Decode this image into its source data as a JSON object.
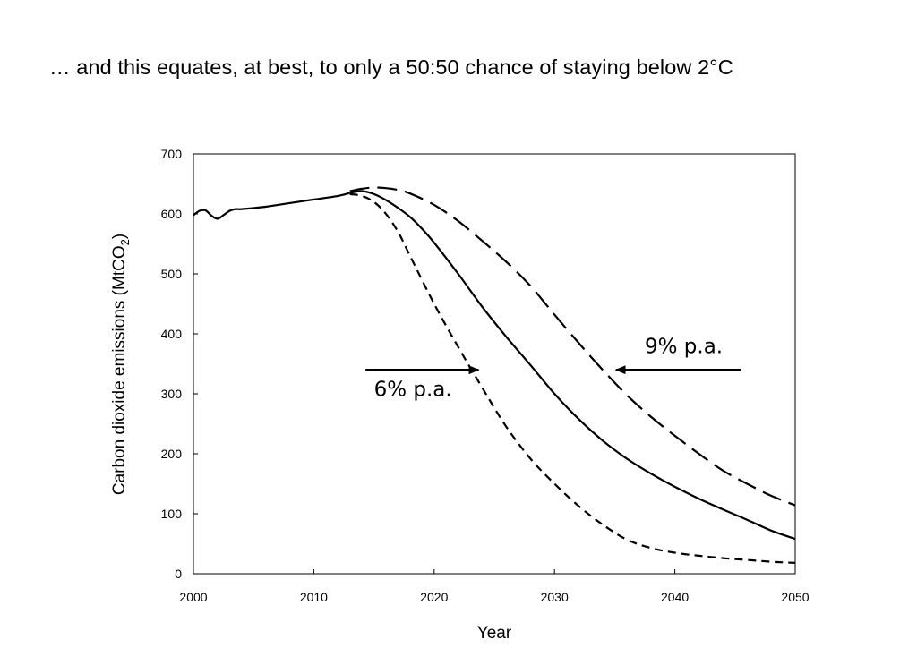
{
  "slide": {
    "title": "… and this equates, at best, to only a 50:50 chance of staying below 2°C"
  },
  "chart_data": {
    "type": "line",
    "title": "",
    "xlabel": "Year",
    "ylabel": "Carbon dioxide emissions (MtCO2)",
    "ylabel_main": "Carbon dioxide emissions (MtCO",
    "ylabel_sub": "2",
    "ylabel_tail": ")",
    "xlim": [
      2000,
      2050
    ],
    "ylim": [
      0,
      700
    ],
    "xticks": [
      2000,
      2010,
      2020,
      2030,
      2040,
      2050
    ],
    "yticks": [
      0,
      100,
      200,
      300,
      400,
      500,
      600,
      700
    ],
    "grid": false,
    "legend": "none",
    "line_color": "#000000",
    "historical": {
      "x": [
        2000,
        2000.5,
        2001,
        2001.5,
        2002,
        2002.5,
        2003,
        2003.5,
        2004,
        2006,
        2008,
        2010,
        2012,
        2013
      ],
      "y": [
        598,
        605,
        606,
        597,
        592,
        598,
        605,
        608,
        608,
        612,
        618,
        624,
        630,
        635
      ]
    },
    "series": [
      {
        "dash": "solid",
        "x": [
          2013,
          2014,
          2015,
          2016,
          2017,
          2018,
          2019,
          2020,
          2022,
          2024,
          2026,
          2028,
          2030,
          2032,
          2034,
          2036,
          2038,
          2040,
          2042,
          2044,
          2046,
          2048,
          2050
        ],
        "y": [
          635,
          638,
          633,
          623,
          610,
          595,
          575,
          552,
          500,
          445,
          395,
          348,
          300,
          258,
          222,
          192,
          167,
          145,
          125,
          107,
          90,
          72,
          58
        ]
      },
      {
        "dash": "long-dash",
        "x": [
          2013,
          2014,
          2015,
          2016,
          2017,
          2018,
          2020,
          2022,
          2024,
          2026,
          2028,
          2030,
          2032,
          2034,
          2036,
          2038,
          2040,
          2042,
          2044,
          2046,
          2048,
          2050
        ],
        "y": [
          638,
          642,
          644,
          643,
          640,
          634,
          615,
          588,
          555,
          520,
          480,
          432,
          385,
          340,
          298,
          262,
          230,
          200,
          172,
          150,
          130,
          114
        ]
      },
      {
        "dash": "short-dash",
        "x": [
          2013,
          2014,
          2015,
          2016,
          2017,
          2018,
          2020,
          2022,
          2024,
          2026,
          2028,
          2030,
          2032,
          2034,
          2036,
          2038,
          2040,
          2042,
          2044,
          2046,
          2048,
          2050
        ],
        "y": [
          633,
          630,
          620,
          600,
          570,
          530,
          450,
          378,
          310,
          245,
          192,
          150,
          113,
          82,
          57,
          43,
          35,
          30,
          26,
          23,
          20,
          18
        ]
      }
    ],
    "annotations": [
      {
        "text": "6% p.a.",
        "text_x": 2015,
        "text_y": 296,
        "arrow_from": [
          2014.3,
          340
        ],
        "arrow_to": [
          2023.7,
          340
        ]
      },
      {
        "text": "9% p.a.",
        "text_x": 2037.5,
        "text_y": 368,
        "arrow_from": [
          2045.5,
          340
        ],
        "arrow_to": [
          2035.1,
          340
        ]
      }
    ]
  }
}
